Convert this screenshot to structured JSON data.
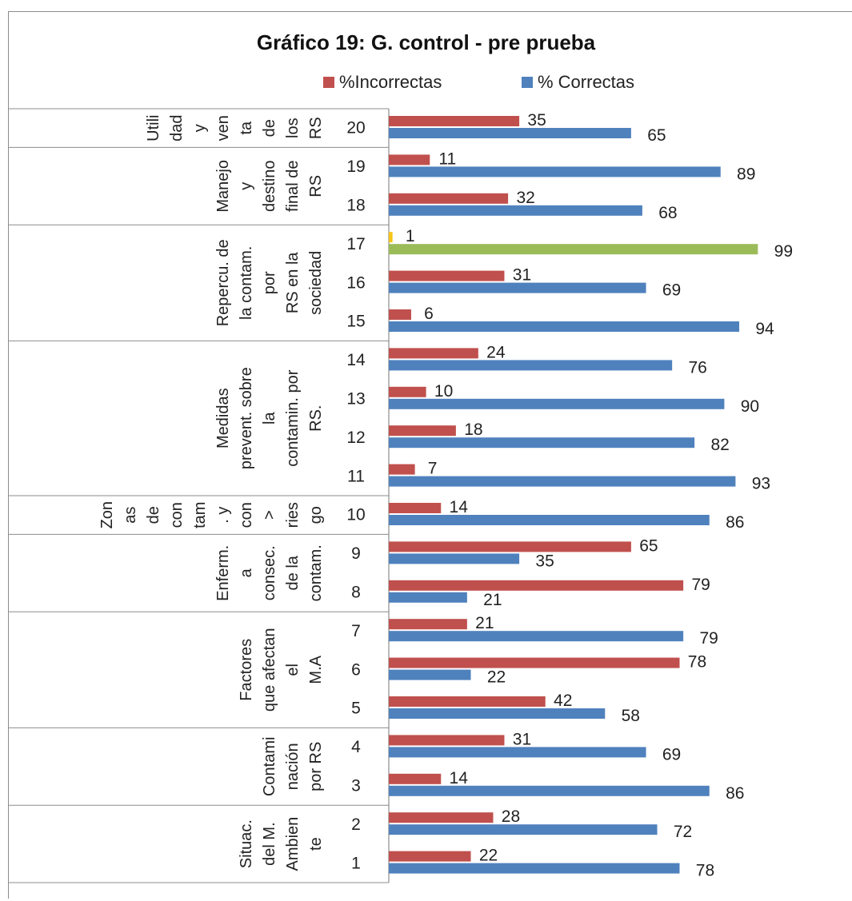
{
  "chart_data": {
    "type": "bar",
    "orientation": "horizontal",
    "title": "Gráfico 19: G. control - pre prueba",
    "legend": [
      "%Incorrectas",
      "% Correctas"
    ],
    "legend_position": "top",
    "series": [
      {
        "name": "%Incorrectas",
        "color": "#c0504d",
        "values": [
          35,
          11,
          32,
          1,
          31,
          6,
          24,
          10,
          18,
          7,
          14,
          65,
          79,
          21,
          78,
          42,
          31,
          14,
          28,
          22
        ]
      },
      {
        "name": "% Correctas",
        "color": "#4f81bd",
        "values": [
          65,
          89,
          68,
          99,
          69,
          94,
          76,
          90,
          82,
          93,
          86,
          35,
          21,
          79,
          22,
          58,
          69,
          86,
          72,
          78
        ]
      }
    ],
    "highlight_colors": {
      "row": "17",
      "incorrect": "#f5c518",
      "correct": "#9bbb59"
    },
    "items": [
      "20",
      "19",
      "18",
      "17",
      "16",
      "15",
      "14",
      "13",
      "12",
      "11",
      "10",
      "9",
      "8",
      "7",
      "6",
      "5",
      "4",
      "3",
      "2",
      "1"
    ],
    "groups": [
      {
        "label_lines": [
          "Utili",
          "dad",
          "y",
          "ven",
          "ta",
          "de",
          "los",
          "RS"
        ],
        "items": [
          "20"
        ]
      },
      {
        "label_lines": [
          "Manejo",
          "y",
          "destino",
          "final de",
          "RS"
        ],
        "items": [
          "19",
          "18"
        ]
      },
      {
        "label_lines": [
          "Repercu. de",
          "la contam.",
          "por",
          "RS en la",
          "sociedad"
        ],
        "items": [
          "17",
          "16",
          "15"
        ]
      },
      {
        "label_lines": [
          "Medidas",
          "prevent. sobre",
          "la",
          "contamin. por",
          "RS."
        ],
        "items": [
          "14",
          "13",
          "12",
          "11"
        ]
      },
      {
        "label_lines": [
          "Zon",
          "as",
          "de",
          "con",
          "tam",
          ". y",
          "con",
          ">",
          "ries",
          "go"
        ],
        "items": [
          "10"
        ]
      },
      {
        "label_lines": [
          "Enferm.",
          "a",
          "consec.",
          "de la",
          "contam."
        ],
        "items": [
          "9",
          "8"
        ]
      },
      {
        "label_lines": [
          "Factores",
          "que afectan",
          "el",
          "M.A"
        ],
        "items": [
          "7",
          "6",
          "5"
        ]
      },
      {
        "label_lines": [
          "Contami",
          "nación",
          "por RS"
        ],
        "items": [
          "4",
          "3"
        ]
      },
      {
        "label_lines": [
          "Situac.",
          "del M.",
          "Ambien",
          "te"
        ],
        "items": [
          "2",
          "1"
        ]
      }
    ],
    "xlim": [
      0,
      100
    ],
    "grid": false
  }
}
